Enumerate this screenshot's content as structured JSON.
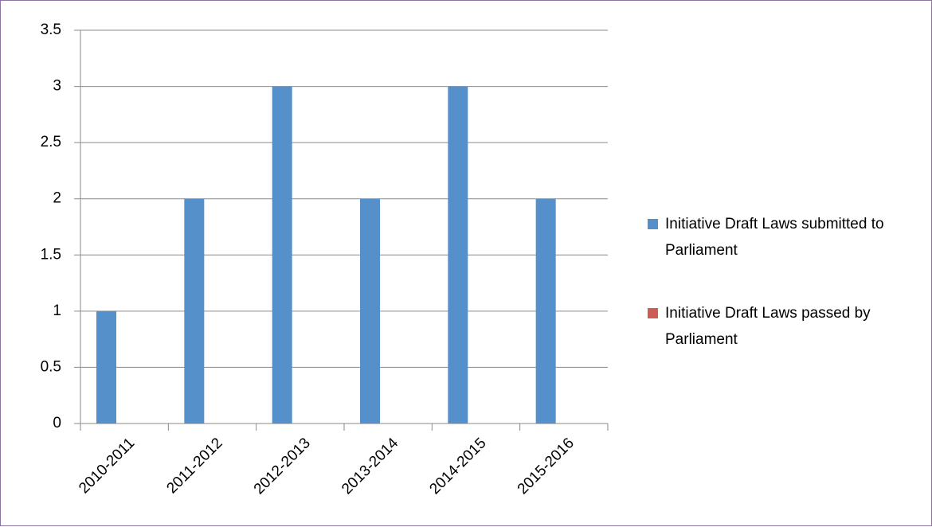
{
  "chart_data": {
    "type": "bar",
    "categories": [
      "2010-2011",
      "2011-2012",
      "2012-2013",
      "2013-2014",
      "2014-2015",
      "2015-2016"
    ],
    "series": [
      {
        "name": "Initiative Draft Laws submitted to Parliament",
        "color": "#5590ca",
        "values": [
          1,
          2,
          3,
          2,
          3,
          2
        ]
      },
      {
        "name": "Initiative Draft Laws passed by Parliament",
        "color": "#cd5c55",
        "values": [
          0,
          0,
          0,
          0,
          0,
          0
        ]
      }
    ],
    "ylim": [
      0,
      3.5
    ],
    "yticks": [
      0,
      0.5,
      1,
      1.5,
      2,
      2.5,
      3,
      3.5
    ],
    "grid": true,
    "legend": "right"
  }
}
